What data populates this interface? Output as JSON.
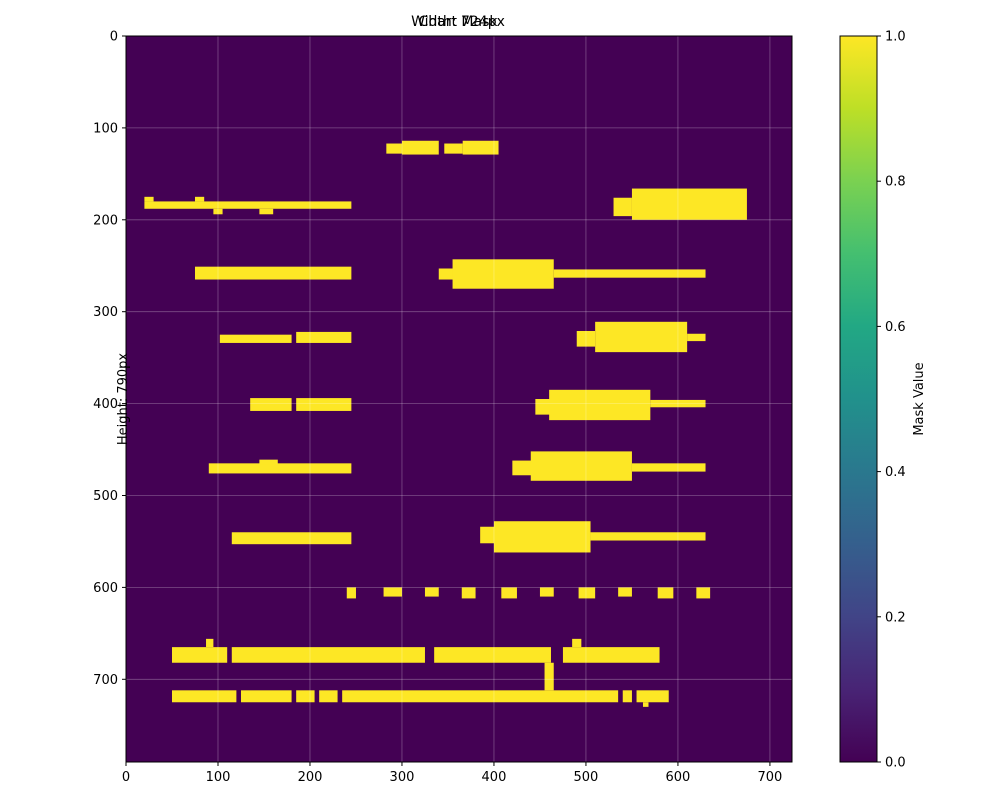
{
  "chart_data": {
    "type": "heatmap",
    "title_lines": [
      "Chart Mask",
      "Width: 724px"
    ],
    "ylabel": "Height: 790px",
    "colorbar_label": "Mask Value",
    "x_range": [
      0,
      724
    ],
    "y_range": [
      0,
      790
    ],
    "x_ticks": [
      0,
      100,
      200,
      300,
      400,
      500,
      600,
      700
    ],
    "y_ticks": [
      0,
      100,
      200,
      300,
      400,
      500,
      600,
      700
    ],
    "colorbar_range": [
      0,
      1
    ],
    "colorbar_ticks": [
      "0.0",
      "0.2",
      "0.4",
      "0.6",
      "0.8",
      "1.0"
    ],
    "grid": true,
    "colors": {
      "low": "#440154",
      "high": "#fde725"
    },
    "mask_regions": [
      {
        "x0": 283,
        "x1": 300,
        "y0": 117,
        "y1": 128
      },
      {
        "x0": 300,
        "x1": 340,
        "y0": 114,
        "y1": 129
      },
      {
        "x0": 346,
        "x1": 366,
        "y0": 117,
        "y1": 128
      },
      {
        "x0": 366,
        "x1": 405,
        "y0": 114,
        "y1": 129
      },
      {
        "x0": 20,
        "x1": 245,
        "y0": 180,
        "y1": 188
      },
      {
        "x0": 20,
        "x1": 30,
        "y0": 175,
        "y1": 180
      },
      {
        "x0": 75,
        "x1": 85,
        "y0": 175,
        "y1": 180
      },
      {
        "x0": 95,
        "x1": 105,
        "y0": 188,
        "y1": 194
      },
      {
        "x0": 145,
        "x1": 160,
        "y0": 188,
        "y1": 194
      },
      {
        "x0": 530,
        "x1": 550,
        "y0": 176,
        "y1": 196
      },
      {
        "x0": 550,
        "x1": 675,
        "y0": 166,
        "y1": 200
      },
      {
        "x0": 75,
        "x1": 245,
        "y0": 251,
        "y1": 265
      },
      {
        "x0": 340,
        "x1": 360,
        "y0": 253,
        "y1": 265
      },
      {
        "x0": 355,
        "x1": 465,
        "y0": 243,
        "y1": 275
      },
      {
        "x0": 465,
        "x1": 630,
        "y0": 254,
        "y1": 263
      },
      {
        "x0": 102,
        "x1": 180,
        "y0": 325,
        "y1": 334
      },
      {
        "x0": 185,
        "x1": 245,
        "y0": 322,
        "y1": 334
      },
      {
        "x0": 490,
        "x1": 510,
        "y0": 321,
        "y1": 338
      },
      {
        "x0": 510,
        "x1": 610,
        "y0": 311,
        "y1": 344
      },
      {
        "x0": 610,
        "x1": 630,
        "y0": 324,
        "y1": 332
      },
      {
        "x0": 135,
        "x1": 180,
        "y0": 394,
        "y1": 408
      },
      {
        "x0": 185,
        "x1": 245,
        "y0": 394,
        "y1": 408
      },
      {
        "x0": 445,
        "x1": 465,
        "y0": 395,
        "y1": 412
      },
      {
        "x0": 460,
        "x1": 570,
        "y0": 385,
        "y1": 418
      },
      {
        "x0": 570,
        "x1": 630,
        "y0": 396,
        "y1": 404
      },
      {
        "x0": 90,
        "x1": 245,
        "y0": 465,
        "y1": 476
      },
      {
        "x0": 145,
        "x1": 165,
        "y0": 461,
        "y1": 466
      },
      {
        "x0": 420,
        "x1": 445,
        "y0": 462,
        "y1": 478
      },
      {
        "x0": 440,
        "x1": 550,
        "y0": 452,
        "y1": 484
      },
      {
        "x0": 550,
        "x1": 630,
        "y0": 465,
        "y1": 474
      },
      {
        "x0": 115,
        "x1": 245,
        "y0": 540,
        "y1": 553
      },
      {
        "x0": 385,
        "x1": 405,
        "y0": 534,
        "y1": 552
      },
      {
        "x0": 400,
        "x1": 505,
        "y0": 528,
        "y1": 562
      },
      {
        "x0": 505,
        "x1": 630,
        "y0": 540,
        "y1": 549
      },
      {
        "x0": 240,
        "x1": 250,
        "y0": 600,
        "y1": 612
      },
      {
        "x0": 280,
        "x1": 300,
        "y0": 600,
        "y1": 610
      },
      {
        "x0": 325,
        "x1": 340,
        "y0": 600,
        "y1": 610
      },
      {
        "x0": 365,
        "x1": 380,
        "y0": 600,
        "y1": 612
      },
      {
        "x0": 408,
        "x1": 425,
        "y0": 600,
        "y1": 612
      },
      {
        "x0": 450,
        "x1": 465,
        "y0": 600,
        "y1": 610
      },
      {
        "x0": 492,
        "x1": 510,
        "y0": 600,
        "y1": 612
      },
      {
        "x0": 535,
        "x1": 550,
        "y0": 600,
        "y1": 610
      },
      {
        "x0": 578,
        "x1": 595,
        "y0": 600,
        "y1": 612
      },
      {
        "x0": 620,
        "x1": 635,
        "y0": 600,
        "y1": 612
      },
      {
        "x0": 50,
        "x1": 110,
        "y0": 665,
        "y1": 682
      },
      {
        "x0": 115,
        "x1": 325,
        "y0": 665,
        "y1": 682
      },
      {
        "x0": 335,
        "x1": 462,
        "y0": 665,
        "y1": 682
      },
      {
        "x0": 475,
        "x1": 580,
        "y0": 665,
        "y1": 682
      },
      {
        "x0": 87,
        "x1": 95,
        "y0": 656,
        "y1": 665
      },
      {
        "x0": 485,
        "x1": 495,
        "y0": 656,
        "y1": 665
      },
      {
        "x0": 455,
        "x1": 465,
        "y0": 682,
        "y1": 712
      },
      {
        "x0": 50,
        "x1": 120,
        "y0": 712,
        "y1": 725
      },
      {
        "x0": 125,
        "x1": 180,
        "y0": 712,
        "y1": 725
      },
      {
        "x0": 185,
        "x1": 205,
        "y0": 712,
        "y1": 725
      },
      {
        "x0": 210,
        "x1": 230,
        "y0": 712,
        "y1": 725
      },
      {
        "x0": 235,
        "x1": 535,
        "y0": 712,
        "y1": 725
      },
      {
        "x0": 540,
        "x1": 550,
        "y0": 712,
        "y1": 725
      },
      {
        "x0": 555,
        "x1": 590,
        "y0": 712,
        "y1": 725
      },
      {
        "x0": 562,
        "x1": 568,
        "y0": 725,
        "y1": 730
      }
    ]
  }
}
